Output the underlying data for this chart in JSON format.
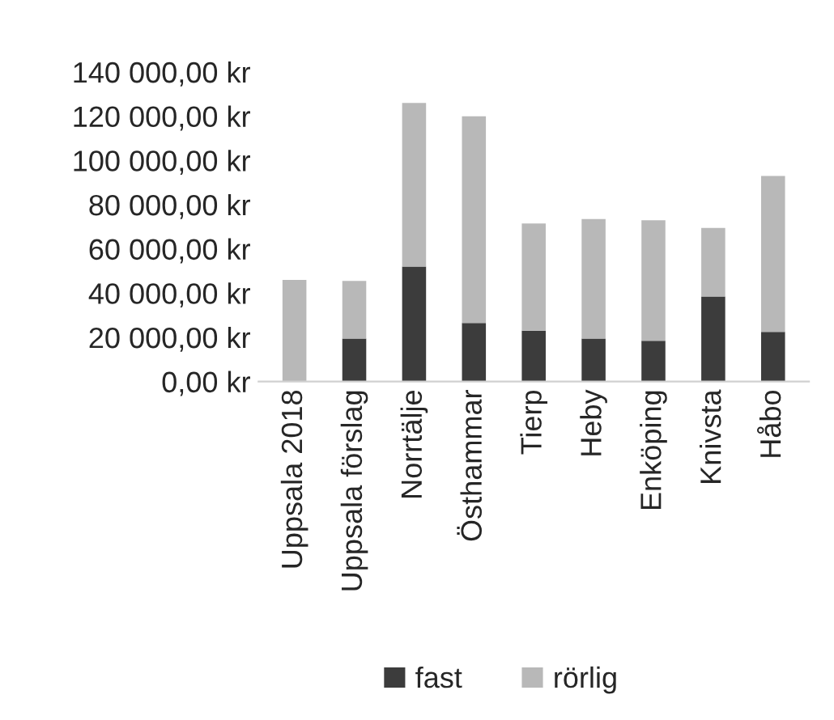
{
  "chart_data": {
    "type": "bar",
    "stacked": true,
    "categories": [
      "Uppsala 2018",
      "Uppsala förslag",
      "Norrtälje",
      "Östhammar",
      "Tierp",
      "Heby",
      "Enköping",
      "Knivsta",
      "Håbo"
    ],
    "series": [
      {
        "name": "fast",
        "color": "#3c3c3c",
        "values": [
          0,
          19500,
          52000,
          26500,
          23000,
          19500,
          18500,
          38500,
          22500
        ]
      },
      {
        "name": "rörlig",
        "color": "#b8b8b8",
        "values": [
          46000,
          26000,
          74000,
          93500,
          48500,
          54000,
          54500,
          31000,
          70500
        ]
      }
    ],
    "ylim": [
      0,
      140000
    ],
    "yticks": [
      {
        "value": 0,
        "label": "0,00 kr"
      },
      {
        "value": 20000,
        "label": "20 000,00 kr"
      },
      {
        "value": 40000,
        "label": "40 000,00 kr"
      },
      {
        "value": 60000,
        "label": "60 000,00 kr"
      },
      {
        "value": 80000,
        "label": "80 000,00 kr"
      },
      {
        "value": 100000,
        "label": "100 000,00 kr"
      },
      {
        "value": 120000,
        "label": "120 000,00 kr"
      },
      {
        "value": 140000,
        "label": "140 000,00 kr"
      }
    ],
    "grid": false,
    "legend": "bottom"
  }
}
